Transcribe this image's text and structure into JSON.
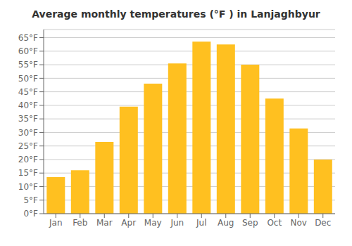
{
  "chart_data": {
    "type": "bar",
    "title": "Average monthly temperatures (°F ) in Lanjaghbyur",
    "categories": [
      "Jan",
      "Feb",
      "Mar",
      "Apr",
      "May",
      "Jun",
      "Jul",
      "Aug",
      "Sep",
      "Oct",
      "Nov",
      "Dec"
    ],
    "values": [
      13.5,
      16.0,
      26.5,
      39.5,
      48.0,
      55.5,
      63.5,
      62.5,
      55.0,
      42.5,
      31.5,
      20.0
    ],
    "color": "#FFC020",
    "ylim": [
      0,
      68
    ],
    "yticks": [
      {
        "value": 0,
        "label": "0°F"
      },
      {
        "value": 5,
        "label": "5°F"
      },
      {
        "value": 10,
        "label": "10°F"
      },
      {
        "value": 15,
        "label": "15°F"
      },
      {
        "value": 20,
        "label": "20°F"
      },
      {
        "value": 25,
        "label": "25°F"
      },
      {
        "value": 30,
        "label": "30°F"
      },
      {
        "value": 35,
        "label": "35°F"
      },
      {
        "value": 40,
        "label": "40°F"
      },
      {
        "value": 45,
        "label": "45°F"
      },
      {
        "value": 50,
        "label": "50°F"
      },
      {
        "value": 55,
        "label": "55°F"
      },
      {
        "value": 60,
        "label": "60°F"
      },
      {
        "value": 65,
        "label": "65°F"
      }
    ],
    "grid": true
  }
}
